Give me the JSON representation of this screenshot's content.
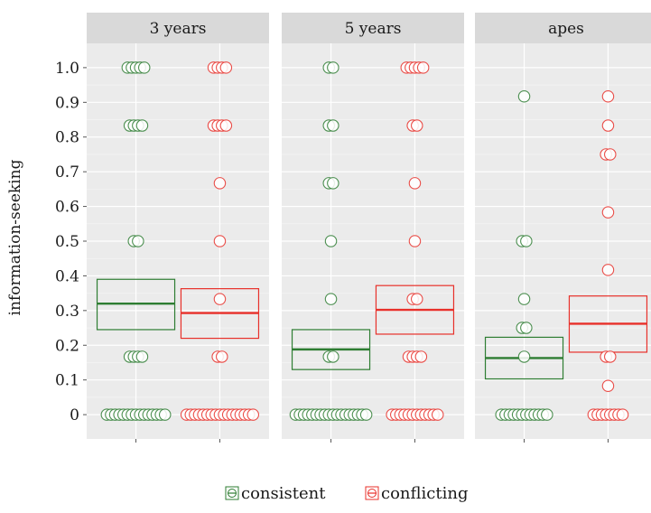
{
  "chart_data": {
    "type": "scatter",
    "title": "",
    "xlabel": "",
    "ylabel": "information-seeking",
    "ylim": [
      -0.07,
      1.07
    ],
    "yticks": [
      {
        "value": 0,
        "label": "0"
      },
      {
        "value": 0.1,
        "label": "0.1"
      },
      {
        "value": 0.2,
        "label": "0.2"
      },
      {
        "value": 0.3,
        "label": "0.3"
      },
      {
        "value": 0.4,
        "label": "0.4"
      },
      {
        "value": 0.5,
        "label": "0.5"
      },
      {
        "value": 0.6,
        "label": "0.6"
      },
      {
        "value": 0.7,
        "label": "0.7"
      },
      {
        "value": 0.8,
        "label": "0.8"
      },
      {
        "value": 0.9,
        "label": "0.9"
      },
      {
        "value": 1.0,
        "label": "1.0"
      }
    ],
    "grid": true,
    "legend_position": "bottom",
    "colors": {
      "consistent": "#2e7d32",
      "conflicting": "#e8302a",
      "panel_bg": "#ebebeb",
      "strip_bg": "#d9d9d9",
      "grid": "#ffffff"
    },
    "legend": [
      {
        "key": "consistent",
        "label": "consistent"
      },
      {
        "key": "conflicting",
        "label": "conflicting"
      }
    ],
    "panels": [
      {
        "label": "3 years",
        "groups": [
          {
            "key": "consistent",
            "mean": 0.32,
            "ci": [
              0.245,
              0.39
            ],
            "points": [
              1,
              1,
              1,
              1,
              1,
              0.833,
              0.833,
              0.833,
              0.833,
              0.5,
              0.5,
              0.167,
              0.167,
              0.167,
              0.167,
              0,
              0,
              0,
              0,
              0,
              0,
              0,
              0,
              0,
              0,
              0,
              0,
              0,
              0,
              0
            ]
          },
          {
            "key": "conflicting",
            "mean": 0.293,
            "ci": [
              0.22,
              0.363
            ],
            "points": [
              1,
              1,
              1,
              1,
              0.833,
              0.833,
              0.833,
              0.833,
              0.667,
              0.5,
              0.333,
              0.167,
              0.167,
              0,
              0,
              0,
              0,
              0,
              0,
              0,
              0,
              0,
              0,
              0,
              0,
              0,
              0,
              0,
              0,
              0
            ]
          }
        ]
      },
      {
        "label": "5 years",
        "groups": [
          {
            "key": "consistent",
            "mean": 0.188,
            "ci": [
              0.13,
              0.245
            ],
            "points": [
              1,
              1,
              0.833,
              0.833,
              0.667,
              0.667,
              0.5,
              0.333,
              0.167,
              0.167,
              0,
              0,
              0,
              0,
              0,
              0,
              0,
              0,
              0,
              0,
              0,
              0,
              0,
              0,
              0,
              0,
              0,
              0
            ]
          },
          {
            "key": "conflicting",
            "mean": 0.302,
            "ci": [
              0.232,
              0.372
            ],
            "points": [
              1,
              1,
              1,
              1,
              1,
              0.833,
              0.833,
              0.667,
              0.5,
              0.333,
              0.333,
              0.167,
              0.167,
              0.167,
              0.167,
              0,
              0,
              0,
              0,
              0,
              0,
              0,
              0,
              0,
              0,
              0,
              0
            ]
          }
        ]
      },
      {
        "label": "apes",
        "groups": [
          {
            "key": "consistent",
            "mean": 0.163,
            "ci": [
              0.103,
              0.223
            ],
            "points": [
              0.917,
              0.5,
              0.5,
              0.333,
              0.25,
              0.25,
              0.167,
              0,
              0,
              0,
              0,
              0,
              0,
              0,
              0,
              0,
              0,
              0,
              0
            ]
          },
          {
            "key": "conflicting",
            "mean": 0.262,
            "ci": [
              0.18,
              0.342
            ],
            "points": [
              0.917,
              0.833,
              0.75,
              0.75,
              0.583,
              0.417,
              0.167,
              0.167,
              0.083,
              0,
              0,
              0,
              0,
              0,
              0,
              0,
              0
            ]
          }
        ]
      }
    ]
  }
}
